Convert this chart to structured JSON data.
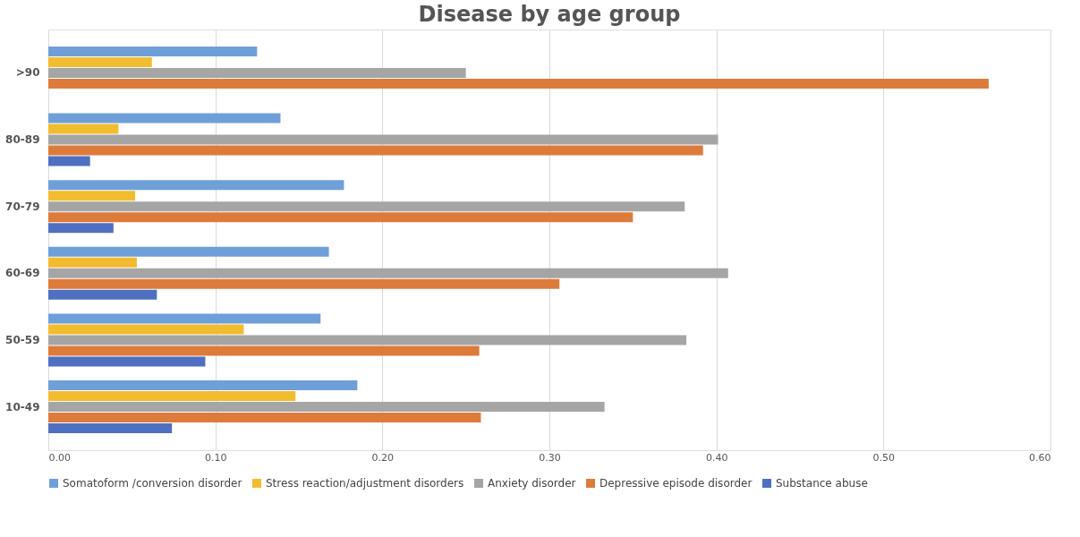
{
  "chart_data": {
    "type": "bar",
    "orientation": "horizontal",
    "title": "Disease by age group",
    "categories": [
      ">90",
      "80-89",
      "70-79",
      "60-69",
      "50-59",
      "10-49"
    ],
    "series": [
      {
        "name": "Somatoform /conversion disorder",
        "color": "#6f9fd8",
        "values": [
          0.125,
          0.139,
          0.177,
          0.168,
          0.163,
          0.185
        ]
      },
      {
        "name": "Stress reaction/adjustment disorders",
        "color": "#f2bc2f",
        "values": [
          0.062,
          0.042,
          0.052,
          0.053,
          0.117,
          0.148
        ]
      },
      {
        "name": "Anxiety disorder",
        "color": "#a5a5a5",
        "values": [
          0.25,
          0.401,
          0.381,
          0.407,
          0.382,
          0.333
        ]
      },
      {
        "name": "Depressive episode disorder",
        "color": "#dd7b3b",
        "values": [
          0.563,
          0.392,
          0.35,
          0.306,
          0.258,
          0.259
        ]
      },
      {
        "name": "Substance abuse",
        "color": "#4f6fc0",
        "values": [
          null,
          0.025,
          0.039,
          0.065,
          0.094,
          0.074
        ]
      }
    ],
    "xlim": [
      0,
      0.6
    ],
    "xticks": [
      {
        "value": 0,
        "label": "0.00"
      },
      {
        "value": 0.1,
        "label": "0.10"
      },
      {
        "value": 0.2,
        "label": "0.20"
      },
      {
        "value": 0.3,
        "label": "0.30"
      },
      {
        "value": 0.4,
        "label": "0.40"
      },
      {
        "value": 0.5,
        "label": "0.50"
      },
      {
        "value": 0.6,
        "label": "0.60"
      }
    ],
    "grid": "x",
    "legend": "bottom"
  }
}
